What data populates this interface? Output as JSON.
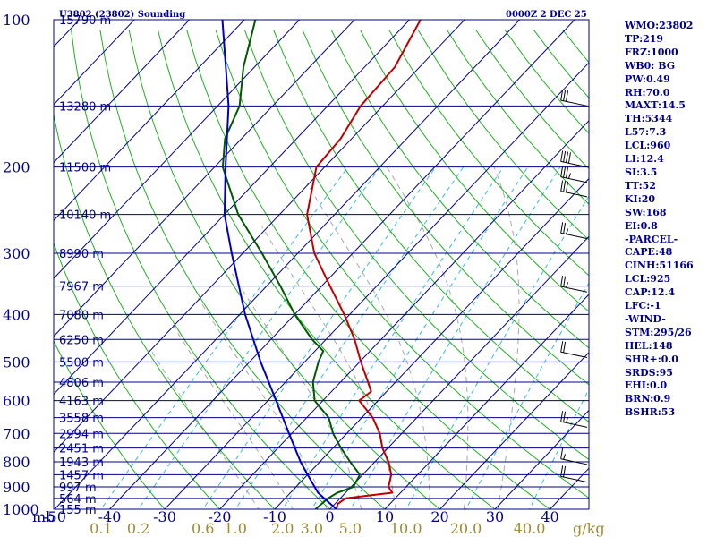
{
  "header": {
    "station": "U3802 (23802) Sounding",
    "time": "0000Z  2 DEC 25"
  },
  "chart_data": {
    "type": "skew-t",
    "title": "U3802 (23802) Sounding",
    "valid_time": "0000Z  2 DEC 25",
    "pressure_axis": {
      "label": "mb",
      "ticks": [
        100,
        200,
        300,
        400,
        500,
        600,
        700,
        800,
        900,
        1000
      ],
      "range_hpa": [
        100,
        1000
      ]
    },
    "temperature_axis": {
      "ticks": [
        -50,
        -40,
        -30,
        -20,
        -10,
        0,
        10,
        20,
        30,
        40
      ],
      "tick_labels": [
        "-50",
        "-40",
        "-30",
        "-20",
        "-10",
        "0",
        "10",
        "20",
        "30",
        "40"
      ],
      "units": "C"
    },
    "mixing_ratio_axis": {
      "ticks": [
        0.1,
        0.2,
        0.6,
        1.0,
        2.0,
        3.0,
        5.0,
        10.0,
        20.0,
        40.0
      ],
      "tick_labels": [
        "0.1",
        "0.2",
        "0.6",
        "1.0",
        "2.0",
        "3.0",
        "5.0",
        "10.0",
        "20.0",
        "40.0"
      ],
      "unit_label": "g/kg"
    },
    "height_labels": [
      {
        "p": 100,
        "text": "15790 m"
      },
      {
        "p": 150,
        "text": "13280 m"
      },
      {
        "p": 200,
        "text": "11500 m"
      },
      {
        "p": 250,
        "text": "10140 m"
      },
      {
        "p": 300,
        "text": "8990 m"
      },
      {
        "p": 350,
        "text": "7967 m"
      },
      {
        "p": 400,
        "text": "7080 m"
      },
      {
        "p": 450,
        "text": "6250 m"
      },
      {
        "p": 500,
        "text": "5500 m"
      },
      {
        "p": 550,
        "text": "4806 m"
      },
      {
        "p": 600,
        "text": "4163 m"
      },
      {
        "p": 650,
        "text": "3558 m"
      },
      {
        "p": 700,
        "text": "2994 m"
      },
      {
        "p": 750,
        "text": "2451 m"
      },
      {
        "p": 800,
        "text": "1943 m"
      },
      {
        "p": 850,
        "text": "1457 m"
      },
      {
        "p": 900,
        "text": "997 m"
      },
      {
        "p": 950,
        "text": "564 m"
      },
      {
        "p": 1000,
        "text": "155 m"
      }
    ],
    "series": [
      {
        "name": "Temperature",
        "color": "#c00000",
        "points": [
          [
            1000,
            1.2
          ],
          [
            975,
            0.5
          ],
          [
            950,
            1.0
          ],
          [
            925,
            8.5
          ],
          [
            900,
            6.8
          ],
          [
            850,
            5.2
          ],
          [
            800,
            2.5
          ],
          [
            750,
            -1.0
          ],
          [
            700,
            -4.0
          ],
          [
            650,
            -8.0
          ],
          [
            600,
            -13.4
          ],
          [
            575,
            -12.8
          ],
          [
            550,
            -15.0
          ],
          [
            500,
            -19.8
          ],
          [
            450,
            -24.8
          ],
          [
            400,
            -31.0
          ],
          [
            350,
            -38.5
          ],
          [
            300,
            -47.0
          ],
          [
            250,
            -55.0
          ],
          [
            200,
            -61.5
          ],
          [
            175,
            -62.0
          ],
          [
            150,
            -64.0
          ],
          [
            125,
            -64.5
          ],
          [
            100,
            -68.0
          ]
        ]
      },
      {
        "name": "Dewpoint",
        "color": "#005800",
        "points": [
          [
            1000,
            -2.6
          ],
          [
            950,
            -2.2
          ],
          [
            925,
            -1.5
          ],
          [
            900,
            0.4
          ],
          [
            850,
            -0.5
          ],
          [
            800,
            -4.5
          ],
          [
            750,
            -8.5
          ],
          [
            700,
            -12.5
          ],
          [
            650,
            -16.0
          ],
          [
            600,
            -21.5
          ],
          [
            550,
            -25.0
          ],
          [
            500,
            -27.5
          ],
          [
            475,
            -28.5
          ],
          [
            450,
            -32.5
          ],
          [
            400,
            -40.0
          ],
          [
            350,
            -47.5
          ],
          [
            300,
            -56.5
          ],
          [
            250,
            -67.5
          ],
          [
            200,
            -78.5
          ],
          [
            175,
            -83.0
          ],
          [
            150,
            -86.0
          ],
          [
            125,
            -92.0
          ],
          [
            100,
            -98.0
          ]
        ]
      },
      {
        "name": "Parcel",
        "color": "#0000c0",
        "points": [
          [
            1000,
            1.2
          ],
          [
            925,
            -5.0
          ],
          [
            850,
            -10.0
          ],
          [
            800,
            -13.5
          ],
          [
            700,
            -20.5
          ],
          [
            600,
            -28.5
          ],
          [
            500,
            -38.0
          ],
          [
            400,
            -49.0
          ],
          [
            300,
            -62.0
          ],
          [
            250,
            -70.0
          ],
          [
            200,
            -78.0
          ],
          [
            150,
            -88.0
          ],
          [
            100,
            -104.0
          ]
        ]
      }
    ],
    "wind_barbs": [
      {
        "p": 150,
        "speed_kt": 30
      },
      {
        "p": 200,
        "speed_kt": 40
      },
      {
        "p": 215,
        "speed_kt": 35
      },
      {
        "p": 230,
        "speed_kt": 30
      },
      {
        "p": 280,
        "speed_kt": 25
      },
      {
        "p": 360,
        "speed_kt": 25
      },
      {
        "p": 490,
        "speed_kt": 20
      },
      {
        "p": 680,
        "speed_kt": 25
      },
      {
        "p": 810,
        "speed_kt": 15
      },
      {
        "p": 880,
        "speed_kt": 20
      }
    ]
  },
  "stats": [
    "WMO:23802",
    "TP:219",
    "FRZ:1000",
    "WB0: BG",
    "PW:0.49",
    "RH:70.0",
    "MAXT:14.5",
    "TH:5344",
    "L57:7.3",
    "LCL:960",
    "LI:12.4",
    "SI:3.5",
    "TT:52",
    "KI:20",
    "SW:168",
    "EI:0.8",
    "-PARCEL-",
    "CAPE:48",
    "CINH:51166",
    "LCL:925",
    "CAP:12.4",
    "LFC:-1",
    "-WIND-",
    "STM:295/26",
    "HEL:148",
    "SHR+:0.0",
    "SRDS:95",
    "EHI:0.0",
    "BRN:0.9",
    "BSHR:53"
  ],
  "colors": {
    "frame": "#00008b",
    "isobar": "#00008b",
    "isotherm": "#00008b",
    "dry_adiabat": "#20b020",
    "moist_adiabat": "#a8a8a8",
    "mixing_ratio": "#33bbdd",
    "axis_text": "#00008b",
    "mixing_label": "#a08a30"
  }
}
